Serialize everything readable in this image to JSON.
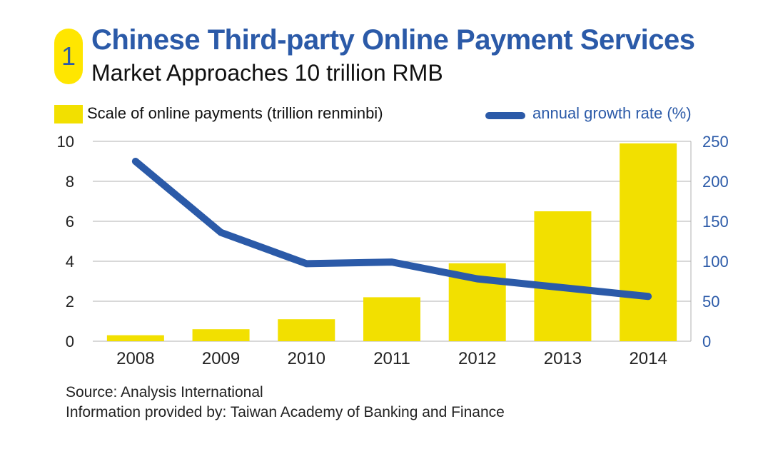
{
  "header": {
    "badge_number": "1",
    "title": "Chinese Third-party Online Payment Services",
    "subtitle": "Market Approaches 10 trillion RMB"
  },
  "colors": {
    "bar": "#f2e000",
    "line": "#2b5aa8",
    "badge": "#ffe600",
    "grid": "#b0b0b0"
  },
  "chart_data": {
    "type": "bar",
    "categories": [
      "2008",
      "2009",
      "2010",
      "2011",
      "2012",
      "2013",
      "2014"
    ],
    "series": [
      {
        "name": "Scale of online payments (trillion renminbi)",
        "type": "bar",
        "axis": "left",
        "values": [
          0.3,
          0.6,
          1.1,
          2.2,
          3.9,
          6.5,
          9.9
        ]
      },
      {
        "name": "annual growth rate (%)",
        "type": "line",
        "axis": "right",
        "values": [
          225,
          136,
          97,
          99,
          78,
          67,
          56
        ]
      }
    ],
    "y_left": {
      "ticks": [
        "0",
        "2",
        "4",
        "6",
        "8",
        "10"
      ],
      "ylim": [
        0,
        10
      ]
    },
    "y_right": {
      "ticks": [
        "0",
        "50",
        "100",
        "150",
        "200",
        "250"
      ],
      "ylim": [
        0,
        250
      ]
    },
    "grid": true,
    "legend": "top"
  },
  "footer": {
    "source": "Source: Analysis International",
    "provider": "Information provided by: Taiwan Academy of Banking and Finance"
  }
}
